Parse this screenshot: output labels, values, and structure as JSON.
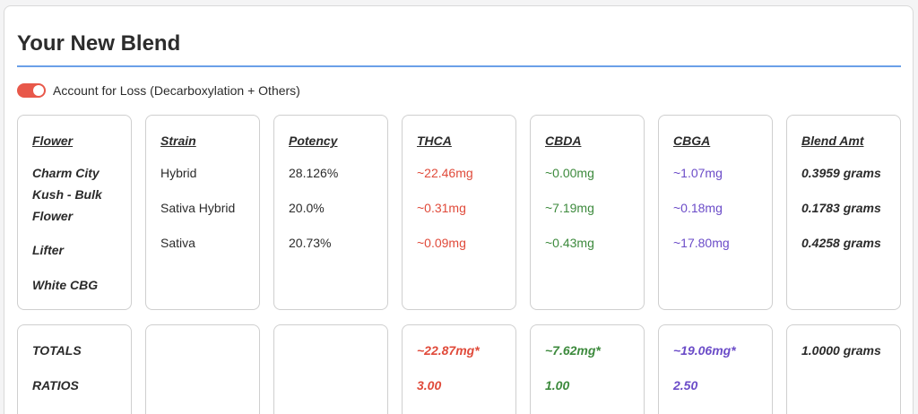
{
  "title": "Your New Blend",
  "toggle": {
    "label": "Account for Loss (Decarboxylation + Others)",
    "on": true
  },
  "columns": {
    "flower": "Flower",
    "strain": "Strain",
    "potency": "Potency",
    "thca": "THCA",
    "cbda": "CBDA",
    "cbga": "CBGA",
    "blend_amt": "Blend Amt"
  },
  "rows": [
    {
      "flower": "Charm City Kush - Bulk Flower",
      "strain": "Hybrid",
      "potency": "28.126%",
      "thca": "~22.46mg",
      "cbda": "~0.00mg",
      "cbga": "~1.07mg",
      "blend_amt": "0.3959 grams"
    },
    {
      "flower": "Lifter",
      "strain": "Sativa Hybrid",
      "potency": "20.0%",
      "thca": "~0.31mg",
      "cbda": "~7.19mg",
      "cbga": "~0.18mg",
      "blend_amt": "0.1783 grams"
    },
    {
      "flower": "White CBG",
      "strain": "Sativa",
      "potency": "20.73%",
      "thca": "~0.09mg",
      "cbda": "~0.43mg",
      "cbga": "~17.80mg",
      "blend_amt": "0.4258 grams"
    }
  ],
  "totals": {
    "label": "TOTALS",
    "thca": "~22.87mg*",
    "cbda": "~7.62mg*",
    "cbga": "~19.06mg*",
    "blend_amt": "1.0000 grams"
  },
  "ratios": {
    "label": "RATIOS",
    "thca": "3.00",
    "cbda": "1.00",
    "cbga": "2.50"
  },
  "colors": {
    "thca": "#e04a3a",
    "cbda": "#3d8a3d",
    "cbga": "#6b4cc8",
    "accent_rule": "#6aa0e8",
    "toggle_on": "#e8584a"
  }
}
